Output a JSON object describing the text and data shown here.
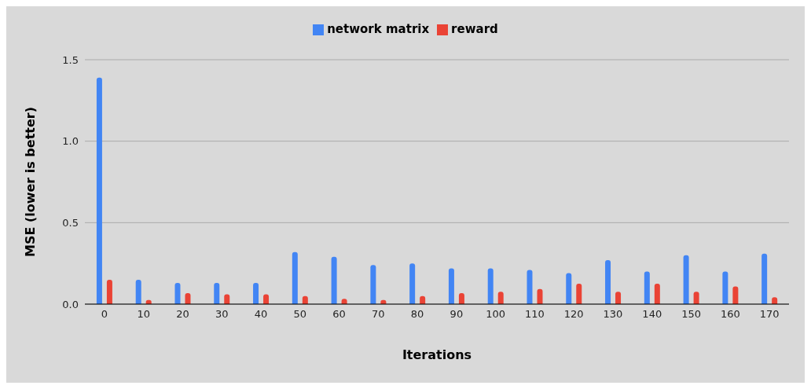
{
  "chart_data": {
    "type": "bar",
    "xlabel": "Iterations",
    "ylabel": "MSE (lower is better)",
    "categories": [
      "0",
      "10",
      "20",
      "30",
      "40",
      "50",
      "60",
      "70",
      "80",
      "90",
      "100",
      "110",
      "120",
      "130",
      "140",
      "150",
      "160",
      "170"
    ],
    "series": [
      {
        "name": "network matrix",
        "color": "#4285f4",
        "values": [
          1.39,
          0.15,
          0.13,
          0.13,
          0.13,
          0.32,
          0.29,
          0.24,
          0.25,
          0.22,
          0.22,
          0.21,
          0.19,
          0.27,
          0.2,
          0.3,
          0.2,
          0.31
        ]
      },
      {
        "name": "reward",
        "color": "#ea4335",
        "values": [
          0.15,
          0.025,
          0.067,
          0.06,
          0.06,
          0.05,
          0.033,
          0.025,
          0.05,
          0.067,
          0.076,
          0.093,
          0.125,
          0.076,
          0.125,
          0.076,
          0.109,
          0.042
        ]
      }
    ],
    "ylim": [
      0,
      1.5
    ],
    "yticks": [
      {
        "value": 0,
        "label": "0.0"
      },
      {
        "value": 0.5,
        "label": "0.5"
      },
      {
        "value": 1,
        "label": "1.0"
      },
      {
        "value": 1.5,
        "label": "1.5"
      }
    ],
    "grid": "y",
    "legend": "top"
  }
}
